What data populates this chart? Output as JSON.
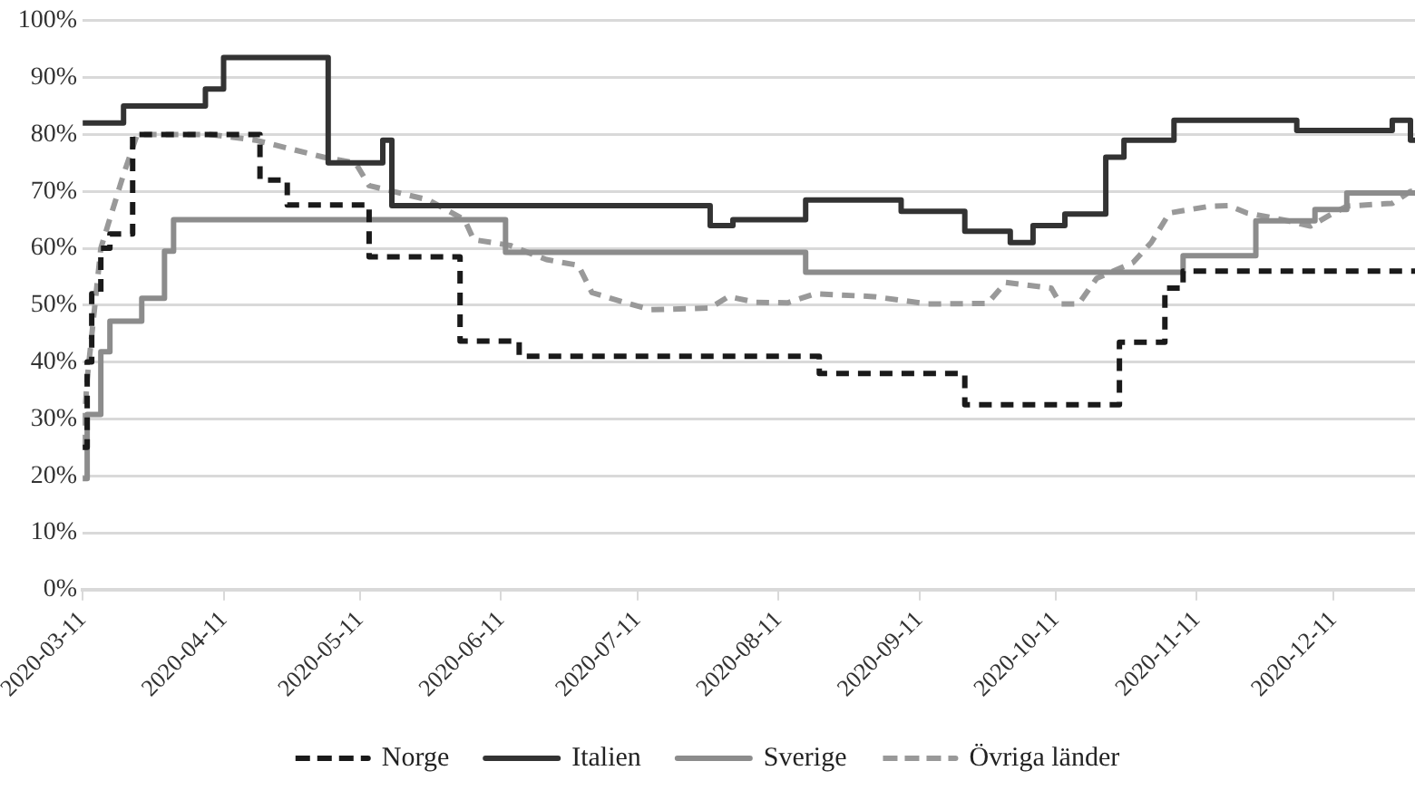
{
  "chart_data": {
    "type": "step",
    "xlim": [
      "2020-03-11",
      "2020-12-29"
    ],
    "xticks": [
      "2020-03-11",
      "2020-04-11",
      "2020-05-11",
      "2020-06-11",
      "2020-07-11",
      "2020-08-11",
      "2020-09-11",
      "2020-10-11",
      "2020-11-11",
      "2020-12-11"
    ],
    "ylim": [
      0,
      100
    ],
    "yticks": [
      {
        "value": 0,
        "label": "0%"
      },
      {
        "value": 10,
        "label": "10%"
      },
      {
        "value": 20,
        "label": "20%"
      },
      {
        "value": 30,
        "label": "30%"
      },
      {
        "value": 40,
        "label": "40%"
      },
      {
        "value": 50,
        "label": "50%"
      },
      {
        "value": 60,
        "label": "60%"
      },
      {
        "value": 70,
        "label": "70%"
      },
      {
        "value": 80,
        "label": "80%"
      },
      {
        "value": 90,
        "label": "90%"
      },
      {
        "value": 100,
        "label": "100%"
      }
    ],
    "grid": "y",
    "legend": "bottom",
    "marker": "none",
    "series": [
      {
        "name": "Norge",
        "color": "#1a1a1a",
        "line_style": "dashed",
        "x": [
          "2020-03-11",
          "2020-03-12",
          "2020-03-13",
          "2020-03-15",
          "2020-03-17",
          "2020-03-22",
          "2020-04-19",
          "2020-04-25",
          "2020-05-13",
          "2020-06-02",
          "2020-06-15",
          "2020-08-20",
          "2020-09-21",
          "2020-10-25",
          "2020-11-04",
          "2020-11-08",
          "2020-12-29"
        ],
        "values": [
          25,
          40,
          52,
          60,
          62.5,
          80,
          72,
          67.6,
          58.5,
          43.7,
          41,
          38,
          32.5,
          43.5,
          53,
          56,
          56
        ]
      },
      {
        "name": "Italien",
        "color": "#333333",
        "line_style": "solid",
        "x": [
          "2020-03-11",
          "2020-03-20",
          "2020-04-07",
          "2020-04-11",
          "2020-05-04",
          "2020-05-16",
          "2020-05-18",
          "2020-07-27",
          "2020-08-01",
          "2020-08-17",
          "2020-09-07",
          "2020-09-21",
          "2020-10-01",
          "2020-10-06",
          "2020-10-13",
          "2020-10-22",
          "2020-10-26",
          "2020-11-06",
          "2020-12-03",
          "2020-12-24",
          "2020-12-28",
          "2020-12-29"
        ],
        "values": [
          82,
          85,
          88,
          93.5,
          75,
          79,
          67.5,
          64,
          65,
          68.5,
          66.5,
          63,
          61,
          64,
          66,
          76,
          79,
          82.5,
          80.7,
          82.5,
          79,
          79
        ]
      },
      {
        "name": "Sverige",
        "color": "#8c8c8c",
        "line_style": "solid",
        "x": [
          "2020-03-11",
          "2020-03-12",
          "2020-03-15",
          "2020-03-17",
          "2020-03-24",
          "2020-03-29",
          "2020-03-31",
          "2020-06-12",
          "2020-08-17",
          "2020-11-08",
          "2020-11-24",
          "2020-12-07",
          "2020-12-14",
          "2020-12-29"
        ],
        "values": [
          19.5,
          30.8,
          41.8,
          47.2,
          51.2,
          59.5,
          65,
          59.3,
          55.8,
          58.7,
          64.8,
          66.8,
          69.7,
          69.7
        ]
      },
      {
        "name": "Övriga länder",
        "color": "#999999",
        "line_style": "dashed",
        "type": "line",
        "x": [
          "2020-03-11",
          "2020-03-12",
          "2020-03-15",
          "2020-03-20",
          "2020-03-23",
          "2020-04-08",
          "2020-04-18",
          "2020-05-03",
          "2020-05-10",
          "2020-05-13",
          "2020-05-26",
          "2020-06-03",
          "2020-06-05",
          "2020-06-13",
          "2020-06-21",
          "2020-06-28",
          "2020-07-01",
          "2020-07-08",
          "2020-07-14",
          "2020-07-27",
          "2020-07-31",
          "2020-08-06",
          "2020-08-13",
          "2020-08-19",
          "2020-09-01",
          "2020-09-13",
          "2020-09-26",
          "2020-09-30",
          "2020-10-10",
          "2020-10-12",
          "2020-10-16",
          "2020-10-20",
          "2020-10-28",
          "2020-11-01",
          "2020-11-05",
          "2020-11-14",
          "2020-11-18",
          "2020-11-22",
          "2020-11-30",
          "2020-12-06",
          "2020-12-10",
          "2020-12-14",
          "2020-12-24",
          "2020-12-28",
          "2020-12-29"
        ],
        "values": [
          25,
          37,
          60,
          73,
          80,
          80,
          79,
          76,
          75,
          71,
          68.5,
          65,
          61.5,
          60.5,
          58,
          57,
          52.2,
          50.5,
          49.2,
          49.5,
          51.5,
          50.5,
          50.4,
          52,
          51.5,
          50.2,
          50.3,
          54,
          53,
          50.2,
          50.2,
          54.7,
          57.5,
          61,
          66.2,
          67.4,
          67.5,
          66.2,
          65,
          63.9,
          65.7,
          67.4,
          67.9,
          70,
          70
        ]
      }
    ]
  }
}
